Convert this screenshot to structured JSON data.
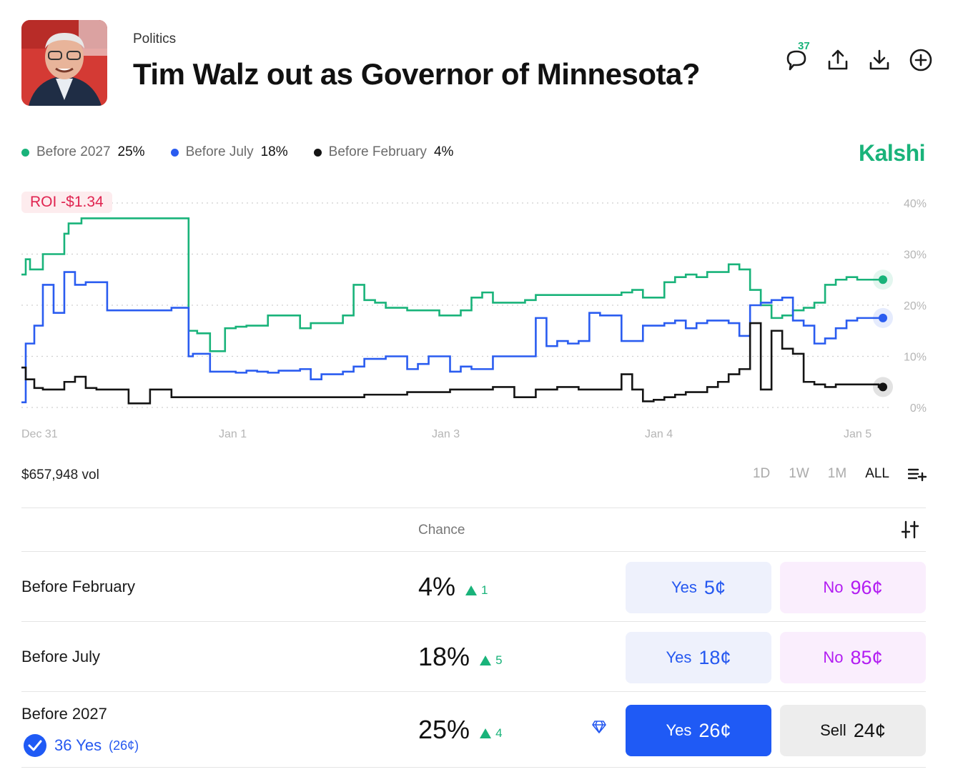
{
  "header": {
    "category": "Politics",
    "title": "Tim Walz out as Governor of Minnesota?",
    "comment_count": "37"
  },
  "brand": "Kalshi",
  "colors": {
    "green": "#19b37a",
    "blue": "#2a5cf0",
    "black": "#141414",
    "roi": "#e02450"
  },
  "legend": [
    {
      "name": "Before 2027",
      "value": "25%",
      "color": "#19b37a"
    },
    {
      "name": "Before July",
      "value": "18%",
      "color": "#2a5cf0"
    },
    {
      "name": "Before February",
      "value": "4%",
      "color": "#141414"
    }
  ],
  "roi": "ROI -$1.34",
  "chart_data": {
    "type": "line",
    "title": "",
    "xlabel": "",
    "ylabel": "",
    "ylim": [
      0,
      40
    ],
    "yticks": [
      "0%",
      "10%",
      "20%",
      "30%",
      "40%"
    ],
    "ytick_values": [
      0,
      10,
      20,
      30,
      40
    ],
    "xticks": [
      "Dec 31",
      "Jan 1",
      "Jan 3",
      "Jan 4",
      "Jan 5"
    ],
    "xtick_values": [
      0,
      1,
      2,
      3,
      4
    ],
    "xlim": [
      0,
      4.07
    ],
    "grid": true,
    "series": [
      {
        "name": "Before 2027",
        "color": "#19b37a",
        "x": [
          0,
          0.02,
          0.04,
          0.1,
          0.2,
          0.22,
          0.28,
          0.3,
          0.35,
          0.4,
          0.45,
          0.5,
          0.6,
          0.7,
          0.78,
          0.82,
          0.88,
          0.95,
          1.0,
          1.05,
          1.1,
          1.15,
          1.2,
          1.3,
          1.35,
          1.4,
          1.5,
          1.55,
          1.6,
          1.65,
          1.7,
          1.75,
          1.8,
          1.85,
          1.9,
          1.95,
          2.0,
          2.05,
          2.1,
          2.15,
          2.2,
          2.3,
          2.35,
          2.4,
          2.45,
          2.5,
          2.6,
          2.7,
          2.8,
          2.85,
          2.9,
          3.0,
          3.05,
          3.1,
          3.15,
          3.2,
          3.3,
          3.35,
          3.4,
          3.45,
          3.5,
          3.55,
          3.6,
          3.65,
          3.7,
          3.75,
          3.8,
          3.85,
          3.9,
          3.95,
          4.0
        ],
        "y": [
          26,
          29,
          27,
          30,
          34,
          36,
          37,
          37,
          37,
          37,
          37,
          37,
          37,
          37,
          15,
          14.5,
          11,
          15.5,
          15.8,
          16,
          16,
          18,
          18,
          15.5,
          16.5,
          16.5,
          18,
          24,
          21,
          20.5,
          19.5,
          19.5,
          19,
          19,
          19,
          18,
          18,
          19,
          21.5,
          22.5,
          20.5,
          20.5,
          21,
          22,
          22,
          22,
          22,
          22,
          22.5,
          23,
          21.5,
          24.5,
          25.5,
          26,
          25.5,
          26.5,
          28,
          27,
          23,
          20,
          17.5,
          18,
          19,
          19.5,
          20.5,
          24,
          25,
          25.5,
          25,
          25,
          25
        ]
      },
      {
        "name": "Before July",
        "color": "#2a5cf0",
        "x": [
          0,
          0.02,
          0.06,
          0.1,
          0.15,
          0.2,
          0.25,
          0.3,
          0.4,
          0.5,
          0.6,
          0.7,
          0.78,
          0.8,
          0.88,
          0.95,
          1.0,
          1.05,
          1.1,
          1.15,
          1.2,
          1.3,
          1.35,
          1.4,
          1.5,
          1.55,
          1.6,
          1.65,
          1.7,
          1.75,
          1.8,
          1.85,
          1.9,
          2.0,
          2.05,
          2.1,
          2.2,
          2.3,
          2.4,
          2.45,
          2.5,
          2.55,
          2.6,
          2.65,
          2.7,
          2.8,
          2.9,
          3.0,
          3.05,
          3.1,
          3.15,
          3.2,
          3.3,
          3.35,
          3.4,
          3.45,
          3.5,
          3.55,
          3.6,
          3.65,
          3.7,
          3.75,
          3.8,
          3.85,
          3.9,
          4.0
        ],
        "y": [
          1,
          12.5,
          16,
          24,
          18.5,
          26.5,
          24,
          24.5,
          19,
          19,
          19,
          19.5,
          10,
          10.5,
          7,
          7,
          6.8,
          7.2,
          7,
          6.8,
          7.2,
          7.5,
          5.5,
          6.5,
          7,
          8,
          9.5,
          9.5,
          10,
          10,
          7.5,
          8.5,
          10,
          7,
          8,
          7.5,
          10,
          10,
          17.5,
          12,
          13,
          12.5,
          13,
          18.5,
          18,
          13,
          16,
          16.5,
          17,
          15.5,
          16.5,
          17,
          16.5,
          14,
          20,
          20.5,
          21,
          21.5,
          17,
          16,
          12.5,
          13.5,
          15.5,
          17,
          17.5,
          17.5
        ]
      },
      {
        "name": "Before February",
        "color": "#141414",
        "x": [
          0,
          0.02,
          0.06,
          0.1,
          0.15,
          0.2,
          0.25,
          0.3,
          0.35,
          0.4,
          0.45,
          0.5,
          0.6,
          0.7,
          0.75,
          0.8,
          0.85,
          0.9,
          0.95,
          1.0,
          1.1,
          1.2,
          1.3,
          1.4,
          1.5,
          1.6,
          1.7,
          1.8,
          1.9,
          2.0,
          2.1,
          2.2,
          2.3,
          2.4,
          2.5,
          2.6,
          2.7,
          2.8,
          2.85,
          2.9,
          2.95,
          3.0,
          3.05,
          3.1,
          3.15,
          3.2,
          3.25,
          3.3,
          3.35,
          3.4,
          3.45,
          3.5,
          3.55,
          3.6,
          3.65,
          3.7,
          3.75,
          3.8,
          3.85,
          3.9,
          4.0
        ],
        "y": [
          7.8,
          5.5,
          3.8,
          3.5,
          3.5,
          5,
          6,
          3.8,
          3.5,
          3.5,
          3.5,
          0.8,
          3.5,
          2,
          2,
          2,
          2,
          2,
          2,
          2,
          2,
          2,
          2,
          2,
          2,
          2.5,
          2.5,
          3,
          3,
          3.5,
          3.5,
          4,
          2,
          3.5,
          4,
          3.5,
          3.5,
          6.5,
          3.5,
          1.2,
          1.5,
          2,
          2.5,
          3,
          3,
          4,
          5,
          6.5,
          7.5,
          16.5,
          3.5,
          15,
          11.5,
          10.5,
          5,
          4.5,
          4,
          4.5,
          4.5,
          4.5,
          4
        ]
      }
    ]
  },
  "volume": "$657,948 vol",
  "ranges": [
    "1D",
    "1W",
    "1M",
    "ALL"
  ],
  "active_range": "ALL",
  "table": {
    "header_chance": "Chance",
    "rows": [
      {
        "label": "Before February",
        "chance": "4%",
        "delta": "1",
        "yes_label": "Yes",
        "yes_price": "5¢",
        "no_label": "No",
        "no_price": "96¢"
      },
      {
        "label": "Before July",
        "chance": "18%",
        "delta": "5",
        "yes_label": "Yes",
        "yes_price": "18¢",
        "no_label": "No",
        "no_price": "85¢"
      },
      {
        "label": "Before 2027",
        "chance": "25%",
        "delta": "4",
        "yes_label": "Yes",
        "yes_price": "26¢",
        "sell_label": "Sell",
        "sell_price": "24¢",
        "position": {
          "count": "36 Yes",
          "avg": "(26¢)"
        }
      }
    ]
  }
}
